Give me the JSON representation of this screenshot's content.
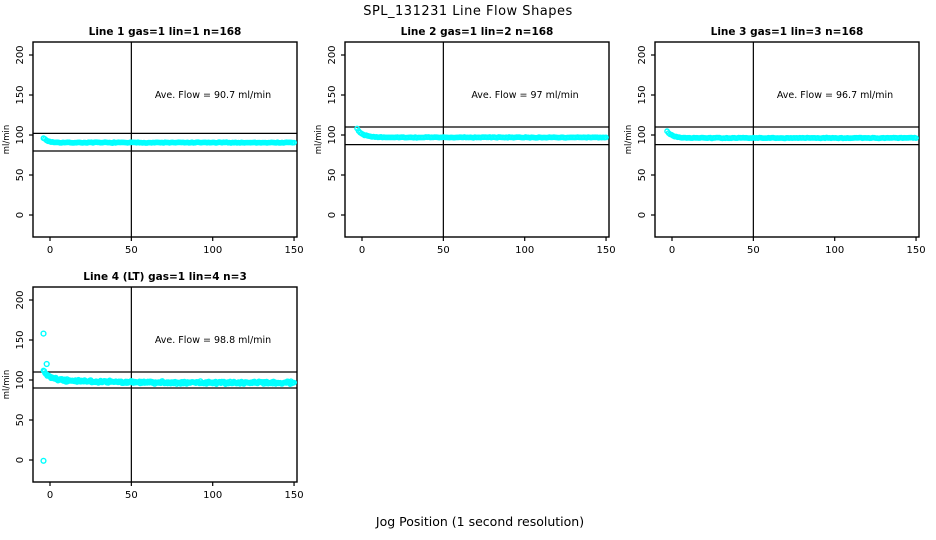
{
  "figure": {
    "main_title": "SPL_131231  Line Flow Shapes",
    "x_axis_label": "Jog Position (1 second resolution)"
  },
  "colors": {
    "background": "#ffffff",
    "points": "#00ffff",
    "axis": "#000000",
    "text": "#000000"
  },
  "axes": {
    "x_ticks": [
      0,
      50,
      100,
      150
    ],
    "y_ticks": [
      0,
      50,
      100,
      150,
      200
    ],
    "ylabel": "ml/min"
  },
  "chart_data": {
    "type": "scatter",
    "x_unit": "jog position (1 second resolution)",
    "y_unit": "ml/min",
    "panels": [
      {
        "title": "Line 1 gas=1 lin=1 n=168",
        "annotation": "Ave. Flow =  90.7  ml/min",
        "ave_flow": 90.7,
        "n": 168,
        "ref_line_upper": 102,
        "ref_line_lower": 80,
        "vline_x": 50,
        "series": {
          "start": 96.5,
          "plateau": 90.5,
          "decay_tau": 2.5,
          "amp2": 0,
          "decay_tau2": 1,
          "jitter": 0.6,
          "x_start": -4,
          "x_end": 150,
          "n_points": 168
        },
        "outliers": []
      },
      {
        "title": "Line 2 gas=1 lin=2 n=168",
        "annotation": "Ave. Flow =  97  ml/min",
        "ave_flow": 97,
        "n": 168,
        "ref_line_upper": 110,
        "ref_line_lower": 88,
        "vline_x": 50,
        "series": {
          "start": 108,
          "plateau": 97,
          "decay_tau": 3.5,
          "amp2": 0,
          "decay_tau2": 1,
          "jitter": 0.6,
          "x_start": -3,
          "x_end": 150,
          "n_points": 168
        },
        "outliers": []
      },
      {
        "title": "Line 3 gas=1 lin=3 n=168",
        "annotation": "Ave. Flow =  96.7  ml/min",
        "ave_flow": 96.7,
        "n": 168,
        "ref_line_upper": 110,
        "ref_line_lower": 88,
        "vline_x": 50,
        "series": {
          "start": 105,
          "plateau": 96.3,
          "decay_tau": 3.0,
          "amp2": 0,
          "decay_tau2": 1,
          "jitter": 0.6,
          "x_start": -3,
          "x_end": 150,
          "n_points": 168
        },
        "outliers": []
      },
      {
        "title": "Line 4 (LT) gas=1 lin=4 n=3",
        "annotation": "Ave. Flow =  98.8  ml/min",
        "ave_flow": 98.8,
        "n": 3,
        "ref_line_upper": 110,
        "ref_line_lower": 90,
        "vline_x": 50,
        "series": {
          "start": 108,
          "plateau": 96.5,
          "decay_tau": 3.5,
          "amp2": 4.5,
          "decay_tau2": 30,
          "jitter": 2.0,
          "x_start": -4,
          "x_end": 150,
          "n_points": 330
        },
        "outliers": [
          [
            -4,
            158
          ],
          [
            -2,
            120
          ],
          [
            -4,
            -1
          ]
        ]
      }
    ]
  }
}
